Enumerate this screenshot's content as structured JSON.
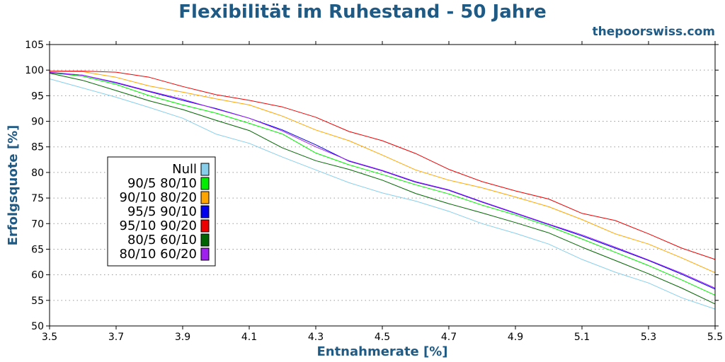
{
  "chart_data": {
    "type": "line",
    "title": "Flexibilität im Ruhestand - 50 Jahre",
    "watermark": "thepoorswiss.com",
    "xlabel": "Entnahmerate [%]",
    "ylabel": "Erfolgsquote [%]",
    "xlim": [
      3.5,
      5.5
    ],
    "ylim": [
      50,
      105
    ],
    "xticks": [
      "3.5",
      "3.7",
      "3.9",
      "4.1",
      "4.3",
      "4.5",
      "4.7",
      "4.9",
      "5.1",
      "5.3",
      "5.5"
    ],
    "yticks": [
      "50",
      "55",
      "60",
      "65",
      "70",
      "75",
      "80",
      "85",
      "90",
      "95",
      "100",
      "105"
    ],
    "grid": "horizontal dotted",
    "legend_position": "left",
    "x": [
      3.5,
      3.6,
      3.7,
      3.8,
      3.9,
      4.0,
      4.1,
      4.2,
      4.3,
      4.4,
      4.5,
      4.6,
      4.7,
      4.8,
      4.9,
      5.0,
      5.1,
      5.2,
      5.3,
      5.4,
      5.5
    ],
    "series": [
      {
        "name": "Null",
        "color": "#87ceeb",
        "values": [
          98.3,
          96.5,
          94.7,
          92.7,
          90.6,
          87.5,
          85.7,
          83.0,
          80.5,
          78.0,
          76.0,
          74.4,
          72.4,
          70.0,
          68.1,
          66.0,
          63.0,
          60.5,
          58.4,
          55.5,
          53.3
        ]
      },
      {
        "name": "90/5 80/10",
        "color": "#00ee00",
        "values": [
          99.5,
          98.8,
          97.2,
          95.0,
          93.2,
          91.6,
          89.6,
          87.5,
          83.8,
          81.5,
          79.6,
          77.6,
          75.8,
          73.6,
          71.7,
          69.5,
          67.0,
          64.4,
          61.8,
          59.0,
          56.0
        ]
      },
      {
        "name": "90/10 80/20",
        "color": "#ffa500",
        "values": [
          99.8,
          99.7,
          98.6,
          96.9,
          95.7,
          94.4,
          93.2,
          91.0,
          88.3,
          86.2,
          83.4,
          80.5,
          78.5,
          77.0,
          75.2,
          73.3,
          70.8,
          68.0,
          66.0,
          63.3,
          60.4
        ]
      },
      {
        "name": "95/5 90/10",
        "color": "#0000ee",
        "values": [
          99.5,
          99.0,
          97.5,
          95.8,
          94.1,
          92.5,
          90.6,
          88.3,
          85.4,
          82.2,
          80.3,
          78.1,
          76.5,
          74.2,
          72.0,
          69.8,
          67.6,
          65.2,
          62.8,
          60.1,
          57.2
        ]
      },
      {
        "name": "95/10 90/20",
        "color": "#ee0000",
        "values": [
          99.8,
          99.8,
          99.6,
          98.6,
          96.8,
          95.2,
          94.1,
          92.8,
          90.8,
          88.0,
          86.2,
          83.7,
          80.6,
          78.2,
          76.4,
          74.8,
          72.0,
          70.6,
          68.0,
          65.2,
          63.0
        ]
      },
      {
        "name": "80/5 60/10",
        "color": "#006400",
        "values": [
          99.4,
          98.0,
          96.0,
          94.0,
          92.3,
          90.2,
          88.2,
          84.8,
          82.3,
          80.6,
          78.5,
          75.9,
          73.9,
          72.1,
          70.2,
          68.2,
          65.4,
          62.8,
          60.2,
          57.4,
          54.3
        ]
      },
      {
        "name": "80/10 60/20",
        "color": "#a020f0",
        "values": [
          99.6,
          99.0,
          97.6,
          95.9,
          94.3,
          92.4,
          90.6,
          88.1,
          85.0,
          82.3,
          80.4,
          78.2,
          76.6,
          74.3,
          72.1,
          69.9,
          67.8,
          65.4,
          62.9,
          60.3,
          57.4
        ]
      }
    ]
  }
}
